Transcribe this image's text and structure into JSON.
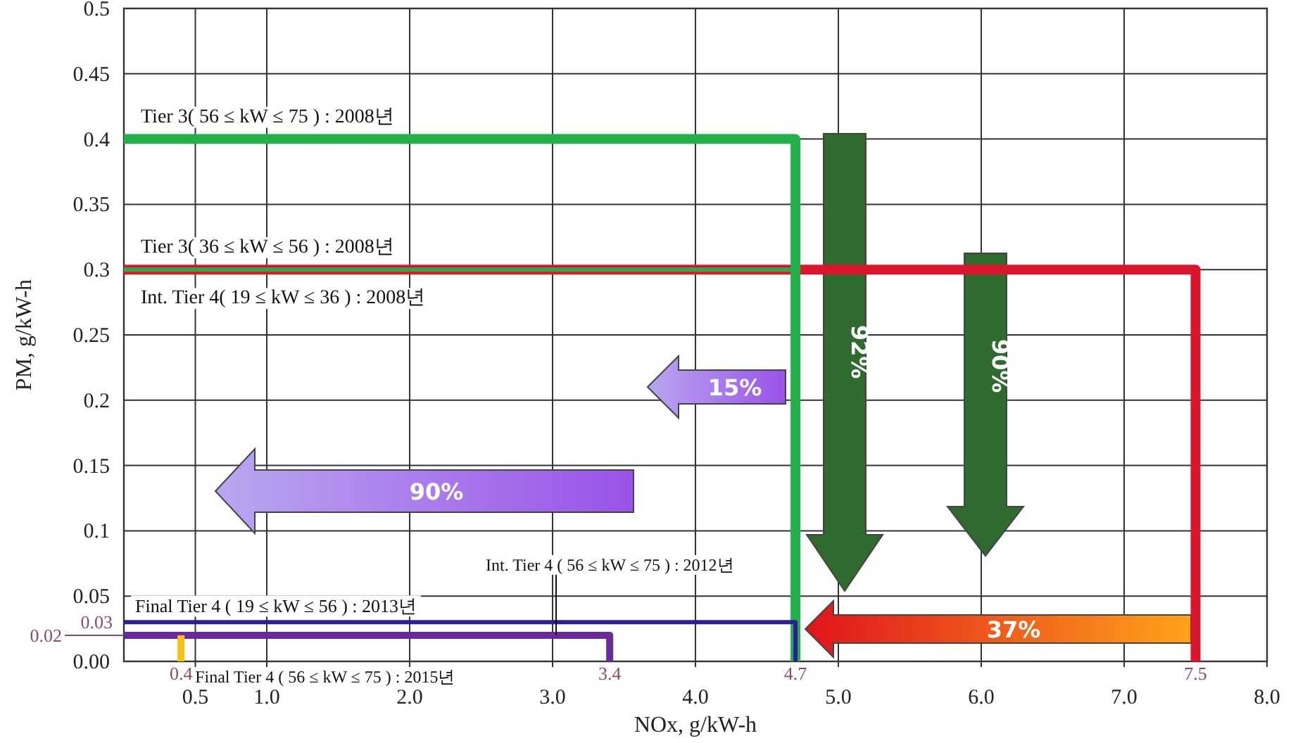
{
  "chart_data": {
    "type": "line",
    "xlabel": "NOx, g/kW-h",
    "ylabel": "PM, g/kW-h",
    "xlim": [
      0,
      8
    ],
    "xticks": [
      0.5,
      {
        "value": 1,
        "label": "1.0"
      },
      {
        "value": 2,
        "label": "2.0"
      },
      {
        "value": 3,
        "label": "3.0"
      },
      {
        "value": 4,
        "label": "4.0"
      },
      {
        "value": 5,
        "label": "5.0"
      },
      {
        "value": 6,
        "label": "6.0"
      },
      {
        "value": 7,
        "label": "7.0"
      },
      {
        "value": 8,
        "label": "8.0"
      }
    ],
    "ylim": [
      0,
      0.5
    ],
    "yticks": [
      {
        "value": 0,
        "label": "0.00"
      },
      0.05,
      0.1,
      0.15,
      0.2,
      0.25,
      0.3,
      0.35,
      0.4,
      0.45,
      0.5
    ],
    "grid": true,
    "line_style": "solid",
    "series": [
      {
        "name": "Tier 3( 56 ≤ kW ≤ 75 ) : 2008년",
        "color": "#22b04b",
        "x": [
          0,
          4.7,
          4.7
        ],
        "values": [
          0.4,
          0.4,
          0
        ]
      },
      {
        "name": "Tier 3( 36 ≤ kW ≤ 56 ) : 2008년",
        "color": "#22b04b",
        "x": [
          0,
          4.7
        ],
        "values": [
          0.3,
          0.3
        ]
      },
      {
        "name": "Int. Tier 4( 19 ≤ kW ≤ 36 ) : 2008년",
        "color": "#d9162c",
        "x": [
          0,
          7.5,
          7.5
        ],
        "values": [
          0.3,
          0.3,
          0
        ]
      },
      {
        "name": "Final Tier 4 ( 19 ≤ kW ≤ 56 ) : 2013년",
        "color": "#2f1b9c",
        "x": [
          0,
          4.7,
          4.7
        ],
        "values": [
          0.03,
          0.03,
          0
        ]
      },
      {
        "name": "Int. Tier 4 ( 56 ≤ kW ≤ 75 ) : 2012년",
        "color": "#6a2a9a",
        "x": [
          0,
          3.4,
          3.4
        ],
        "values": [
          0.02,
          0.02,
          0
        ]
      },
      {
        "name": "Final Tier 4 ( 56 ≤ kW ≤ 75 ) : 2015년",
        "color": "#f2c21a",
        "x": [
          0.4,
          0.4
        ],
        "values": [
          0,
          0.02
        ]
      }
    ],
    "annotations": [
      "15%",
      "90%",
      "92%",
      "90%",
      "37%",
      {
        "text": "0.03",
        "x": 0,
        "y": 0.03
      },
      {
        "text": "0.02",
        "x": 0,
        "y": 0.02
      },
      {
        "text": "0.4",
        "x": 0.4,
        "y": 0
      },
      {
        "text": "3.4",
        "x": 3.4,
        "y": 0
      },
      {
        "text": "4.7",
        "x": 4.7,
        "y": 0
      },
      {
        "text": "7.5",
        "x": 7.5,
        "y": 0
      }
    ]
  }
}
